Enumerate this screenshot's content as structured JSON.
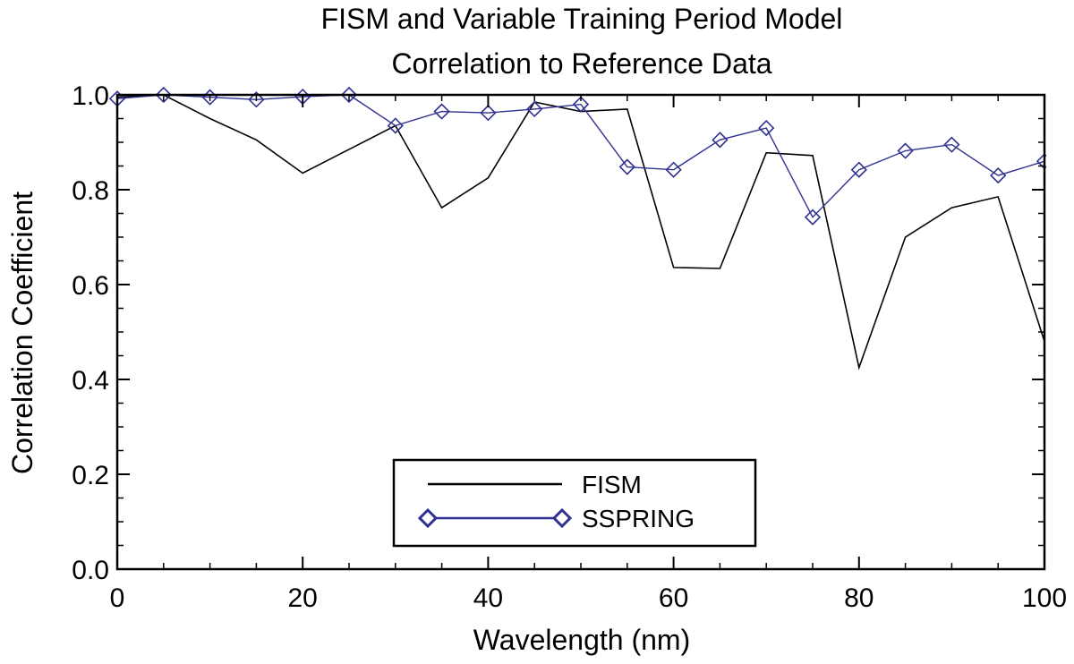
{
  "chart_data": {
    "type": "line",
    "title": "FISM and Variable Training Period Model",
    "subtitle": "Correlation to Reference Data",
    "xlabel": "Wavelength (nm)",
    "ylabel": "Correlation Coefficient",
    "xlim": [
      0,
      100
    ],
    "ylim": [
      0.0,
      1.0
    ],
    "x_ticks": [
      0,
      20,
      40,
      60,
      80,
      100
    ],
    "x_tick_labels": [
      "0",
      "20",
      "40",
      "60",
      "80",
      "100"
    ],
    "y_ticks": [
      0.0,
      0.2,
      0.4,
      0.6,
      0.8,
      1.0
    ],
    "y_tick_labels": [
      "0.0",
      "0.2",
      "0.4",
      "0.6",
      "0.8",
      "1.0"
    ],
    "grid": false,
    "legend_position": "bottom-center",
    "series": [
      {
        "name": "FISM",
        "color": "#000000",
        "marker": "none",
        "x": [
          0,
          5,
          10,
          15,
          20,
          25,
          30,
          35,
          40,
          45,
          50,
          55,
          60,
          65,
          70,
          75,
          80,
          85,
          90,
          95,
          100
        ],
        "y": [
          0.995,
          1.0,
          0.95,
          0.905,
          0.835,
          0.885,
          0.935,
          0.762,
          0.825,
          0.985,
          0.965,
          0.97,
          0.636,
          0.634,
          0.878,
          0.872,
          0.425,
          0.7,
          0.762,
          0.785,
          0.48
        ]
      },
      {
        "name": "SSPRING",
        "color": "#2e3192",
        "marker": "diamond",
        "x": [
          0,
          5,
          10,
          15,
          20,
          25,
          30,
          35,
          40,
          45,
          50,
          55,
          60,
          65,
          70,
          75,
          80,
          85,
          90,
          95,
          100
        ],
        "y": [
          0.992,
          1.0,
          0.995,
          0.99,
          0.996,
          1.0,
          0.935,
          0.965,
          0.962,
          0.97,
          0.98,
          0.848,
          0.842,
          0.905,
          0.93,
          0.742,
          0.842,
          0.882,
          0.895,
          0.83,
          0.86
        ]
      }
    ]
  }
}
